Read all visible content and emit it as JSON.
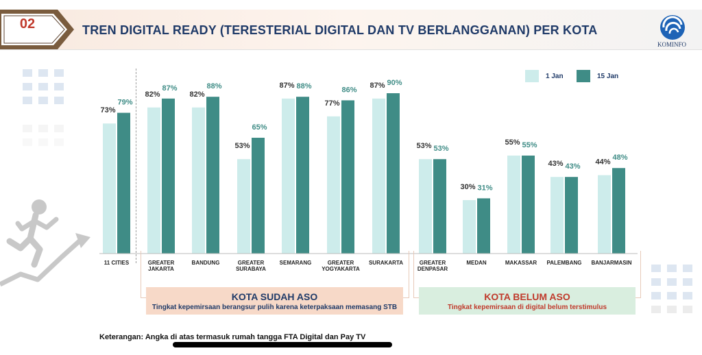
{
  "header": {
    "section_number": "02",
    "title": "TREN DIGITAL READY (TERESTERIAL DIGITAL DAN TV BERLANGGANAN) PER KOTA",
    "logo_text": "KOMINFO"
  },
  "colors": {
    "jan1": "#cdeceb",
    "jan15": "#3f8c86",
    "title_blue": "#1f3a68",
    "badge_red": "#c0392b"
  },
  "chart_data": {
    "type": "bar",
    "categories": [
      "11 CITIES",
      "GREATER JAKARTA",
      "BANDUNG",
      "GREATER SURABAYA",
      "SEMARANG",
      "GREATER YOGYAKARTA",
      "SURAKARTA",
      "GREATER DENPASAR",
      "MEDAN",
      "MAKASSAR",
      "PALEMBANG",
      "BANJARMASIN"
    ],
    "series": [
      {
        "name": "1 Jan",
        "values": [
          73,
          82,
          82,
          53,
          87,
          77,
          87,
          53,
          30,
          55,
          43,
          44
        ]
      },
      {
        "name": "15 Jan",
        "values": [
          79,
          87,
          88,
          65,
          88,
          86,
          90,
          53,
          31,
          55,
          43,
          48
        ]
      }
    ],
    "value_labels": {
      "jan1": [
        "73%",
        "82%",
        "82%",
        "53%",
        "87%",
        "77%",
        "87%",
        "53%",
        "30%",
        "55%",
        "43%",
        "44%"
      ],
      "jan15": [
        "79%",
        "87%",
        "88%",
        "65%",
        "88%",
        "86%",
        "90%",
        "53%",
        "31%",
        "55%",
        "43%",
        "48%"
      ]
    },
    "legend_position": "top-right",
    "grid": false,
    "ylim": [
      0,
      100
    ]
  },
  "groups": {
    "sudah": {
      "title": "KOTA SUDAH ASO",
      "subtitle": "Tingkat kepemirsaan berangsur pulih karena keterpaksaan memasang STB"
    },
    "belum": {
      "title": "KOTA BELUM ASO",
      "subtitle": "Tingkat kepemirsaan di digital belum terstimulus"
    }
  },
  "footer": {
    "note": "Keterangan: Angka di atas termasuk rumah tangga FTA Digital dan Pay TV"
  }
}
